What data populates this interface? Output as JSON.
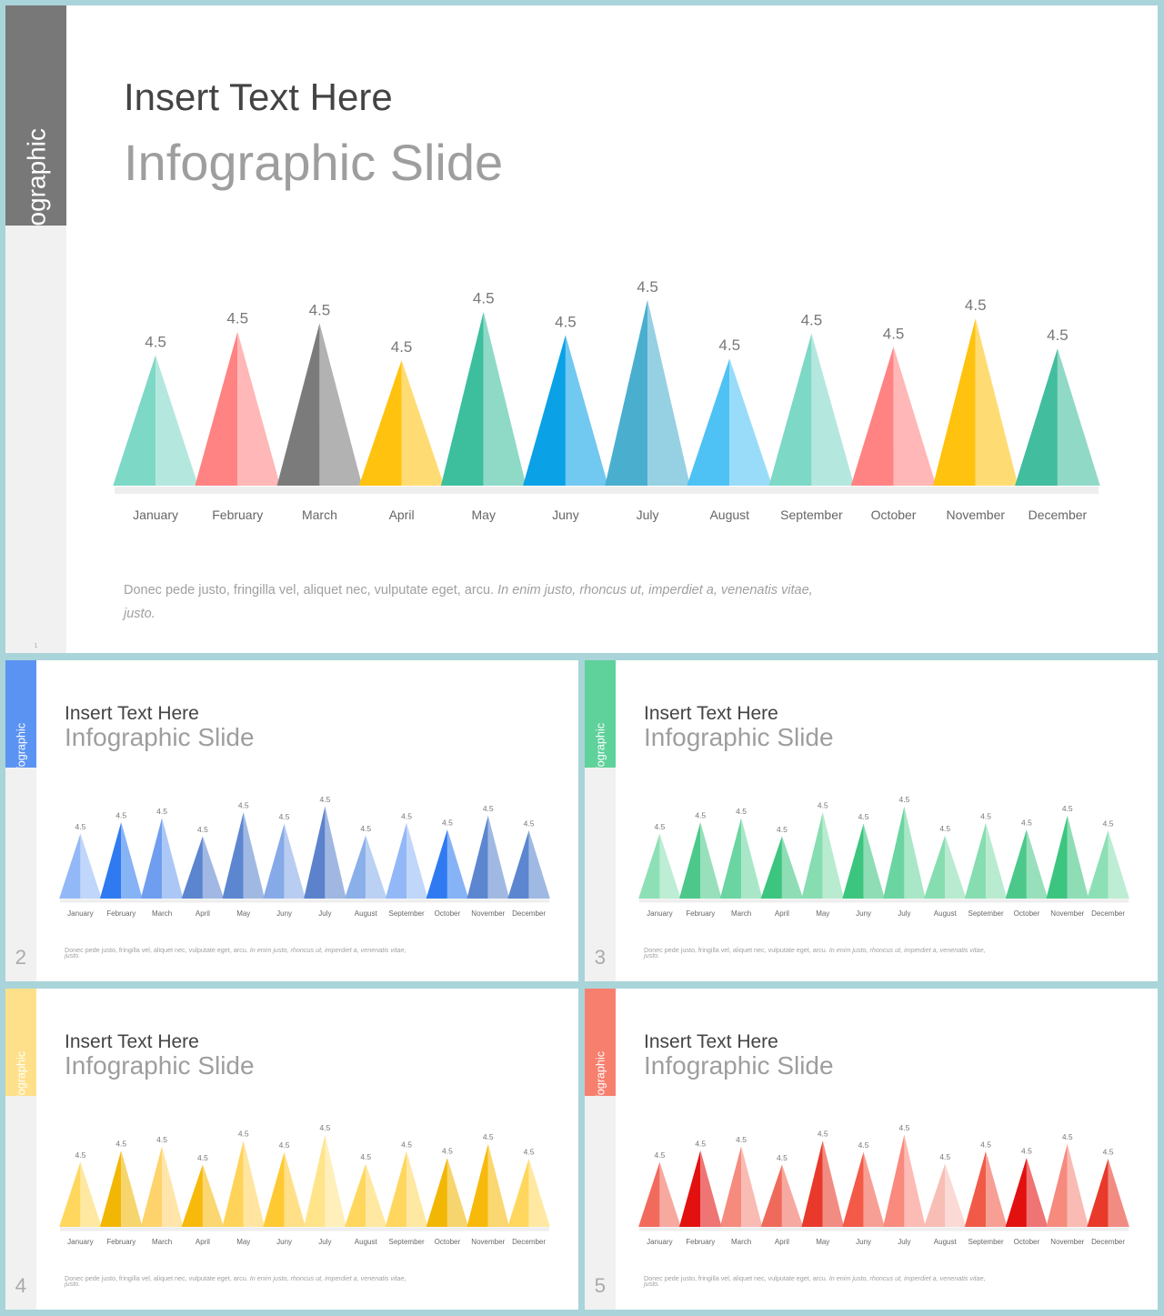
{
  "chart_data": [
    {
      "type": "bar",
      "style": "triangle",
      "slide_number": "1",
      "categories": [
        "January",
        "February",
        "March",
        "April",
        "May",
        "Juny",
        "July",
        "August",
        "September",
        "October",
        "November",
        "December"
      ],
      "values": [
        4.5,
        4.5,
        4.5,
        4.5,
        4.5,
        4.5,
        4.5,
        4.5,
        4.5,
        4.5,
        4.5,
        4.5
      ],
      "data_labels": [
        "4.5",
        "4.5",
        "4.5",
        "4.5",
        "4.5",
        "4.5",
        "4.5",
        "4.5",
        "4.5",
        "4.5",
        "4.5",
        "4.5"
      ],
      "title": "Insert Text Here",
      "subtitle": "Infographic Slide",
      "side_tab": "Ifographic",
      "description": "Donec pede justo, fringilla  vel, aliquet nec, vulputate eget, arcu. ",
      "description_italic": "In enim justo, rhoncus ut, imperdiet a, venenatis vitae, justo.",
      "tab_color": "#787878",
      "colors": [
        "#7dd8c6",
        "#ff8383",
        "#7b7b7b",
        "#ffc20e",
        "#3dbf9e",
        "#0aa1e6",
        "#4aaecf",
        "#4fc2f5",
        "#7dd8c6",
        "#ff8383",
        "#ffc20e",
        "#42bd9e"
      ]
    },
    {
      "type": "bar",
      "style": "triangle",
      "slide_number": "2",
      "categories": [
        "January",
        "February",
        "March",
        "April",
        "May",
        "Juny",
        "July",
        "August",
        "September",
        "October",
        "November",
        "December"
      ],
      "values": [
        4.5,
        4.5,
        4.5,
        4.5,
        4.5,
        4.5,
        4.5,
        4.5,
        4.5,
        4.5,
        4.5,
        4.5
      ],
      "data_labels": [
        "4.5",
        "4.5",
        "4.5",
        "4.5",
        "4.5",
        "4.5",
        "4.5",
        "4.5",
        "4.5",
        "4.5",
        "4.5",
        "4.5"
      ],
      "title": "Insert Text Here",
      "subtitle": "Infographic Slide",
      "side_tab": "Ifographic",
      "description": "Donec pede justo, fringilla  vel, aliquet nec, vulputate eget, arcu. ",
      "description_italic": "In enim justo, rhoncus ut, imperdiet a, venenatis vitae, justo.",
      "tab_color": "#5b93f2",
      "colors": [
        "#93b8f7",
        "#2f7af0",
        "#6f9ef0",
        "#5b85cf",
        "#5c86cf",
        "#86a9e8",
        "#5c82cc",
        "#8ab0ea",
        "#93b8f7",
        "#2f7af0",
        "#5c86cf",
        "#5c86cf"
      ]
    },
    {
      "type": "bar",
      "style": "triangle",
      "slide_number": "3",
      "categories": [
        "January",
        "February",
        "March",
        "April",
        "May",
        "Juny",
        "July",
        "August",
        "September",
        "October",
        "November",
        "December"
      ],
      "values": [
        4.5,
        4.5,
        4.5,
        4.5,
        4.5,
        4.5,
        4.5,
        4.5,
        4.5,
        4.5,
        4.5,
        4.5
      ],
      "data_labels": [
        "4.5",
        "4.5",
        "4.5",
        "4.5",
        "4.5",
        "4.5",
        "4.5",
        "4.5",
        "4.5",
        "4.5",
        "4.5",
        "4.5"
      ],
      "title": "Insert Text Here",
      "subtitle": "Infographic Slide",
      "side_tab": "Ifographic",
      "description": "Donec pede justo, fringilla  vel, aliquet nec, vulputate eget, arcu. ",
      "description_italic": "In enim justo, rhoncus ut, imperdiet a, venenatis vitae, justo.",
      "tab_color": "#5fd19a",
      "colors": [
        "#8de0b5",
        "#4cc98a",
        "#6ad5a0",
        "#3cc57f",
        "#86ddb0",
        "#3cc57f",
        "#6ad5a0",
        "#86ddb0",
        "#86ddb0",
        "#4cc98a",
        "#3cc57f",
        "#8de0b5"
      ]
    },
    {
      "type": "bar",
      "style": "triangle",
      "slide_number": "4",
      "categories": [
        "January",
        "February",
        "March",
        "April",
        "May",
        "Juny",
        "July",
        "August",
        "September",
        "October",
        "November",
        "December"
      ],
      "values": [
        4.5,
        4.5,
        4.5,
        4.5,
        4.5,
        4.5,
        4.5,
        4.5,
        4.5,
        4.5,
        4.5,
        4.5
      ],
      "data_labels": [
        "4.5",
        "4.5",
        "4.5",
        "4.5",
        "4.5",
        "4.5",
        "4.5",
        "4.5",
        "4.5",
        "4.5",
        "4.5",
        "4.5"
      ],
      "title": "Insert Text Here",
      "subtitle": "Infographic Slide",
      "side_tab": "Ifographic",
      "description": "Donec pede justo, fringilla  vel, aliquet nec, vulputate eget, arcu. ",
      "description_italic": "In enim justo, rhoncus ut, imperdiet a, venenatis vitae, justo.",
      "tab_color": "#ffe08a",
      "colors": [
        "#ffd75e",
        "#f2b705",
        "#ffd36b",
        "#f7ba0a",
        "#ffd35a",
        "#ffc933",
        "#ffe48a",
        "#ffd75e",
        "#ffd75e",
        "#f2b705",
        "#f7ba0a",
        "#ffd75e"
      ]
    },
    {
      "type": "bar",
      "style": "triangle",
      "slide_number": "5",
      "categories": [
        "January",
        "February",
        "March",
        "April",
        "May",
        "Juny",
        "July",
        "August",
        "September",
        "October",
        "November",
        "December"
      ],
      "values": [
        4.5,
        4.5,
        4.5,
        4.5,
        4.5,
        4.5,
        4.5,
        4.5,
        4.5,
        4.5,
        4.5,
        4.5
      ],
      "data_labels": [
        "4.5",
        "4.5",
        "4.5",
        "4.5",
        "4.5",
        "4.5",
        "4.5",
        "4.5",
        "4.5",
        "4.5",
        "4.5",
        "4.5"
      ],
      "title": "Insert Text Here",
      "subtitle": "Infographic Slide",
      "side_tab": "Ifographic",
      "description": "Donec pede justo, fringilla  vel, aliquet nec, vulputate eget, arcu. ",
      "description_italic": "In enim justo, rhoncus ut, imperdiet a, venenatis vitae, justo.",
      "tab_color": "#f77f6e",
      "colors": [
        "#f26a5c",
        "#e31010",
        "#f58a7d",
        "#f06a5c",
        "#e8392a",
        "#f35a48",
        "#f98a7d",
        "#f8bdb5",
        "#f25a48",
        "#e31010",
        "#f58a7d",
        "#e8392a"
      ]
    }
  ]
}
